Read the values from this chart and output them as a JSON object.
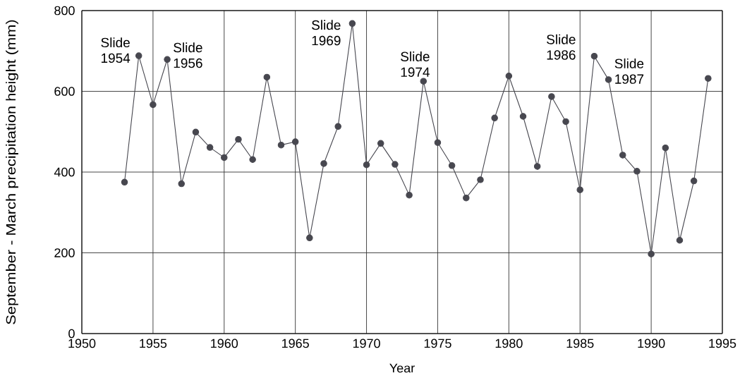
{
  "chart_data": {
    "type": "line",
    "xlabel": "Year",
    "ylabel": "September - March precipitation height (mm)",
    "x": [
      1953,
      1954,
      1955,
      1956,
      1957,
      1958,
      1959,
      1960,
      1961,
      1962,
      1963,
      1964,
      1965,
      1966,
      1967,
      1968,
      1969,
      1970,
      1971,
      1972,
      1973,
      1974,
      1975,
      1976,
      1977,
      1978,
      1979,
      1980,
      1981,
      1982,
      1983,
      1984,
      1985,
      1986,
      1987,
      1988,
      1989,
      1990,
      1991,
      1992,
      1993,
      1994
    ],
    "series": [
      {
        "color": "#47474f",
        "values": [
          375,
          688,
          567,
          679,
          371,
          499,
          461,
          436,
          481,
          431,
          635,
          467,
          475,
          237,
          421,
          513,
          768,
          418,
          471,
          419,
          343,
          625,
          473,
          416,
          336,
          381,
          534,
          638,
          538,
          414,
          587,
          525,
          356,
          687,
          629,
          442,
          402,
          197,
          460,
          231,
          378,
          632
        ]
      }
    ],
    "xlim": [
      1950,
      1995
    ],
    "ylim": [
      0,
      800
    ],
    "xticks": [
      1950,
      1955,
      1960,
      1965,
      1970,
      1975,
      1980,
      1985,
      1990,
      1995
    ],
    "yticks": [
      0,
      200,
      400,
      600,
      800
    ],
    "grid": true,
    "marker": "circle",
    "line_style": "solid",
    "annotations": [
      {
        "text": "Slide 1954",
        "x": 1954,
        "y": 688
      },
      {
        "text": "Slide 1956",
        "x": 1956,
        "y": 679
      },
      {
        "text": "Slide 1969",
        "x": 1969,
        "y": 768
      },
      {
        "text": "Slide 1974",
        "x": 1974,
        "y": 625
      },
      {
        "text": "Slide 1986",
        "x": 1986,
        "y": 687
      },
      {
        "text": "Slide 1987",
        "x": 1987,
        "y": 629
      }
    ]
  }
}
